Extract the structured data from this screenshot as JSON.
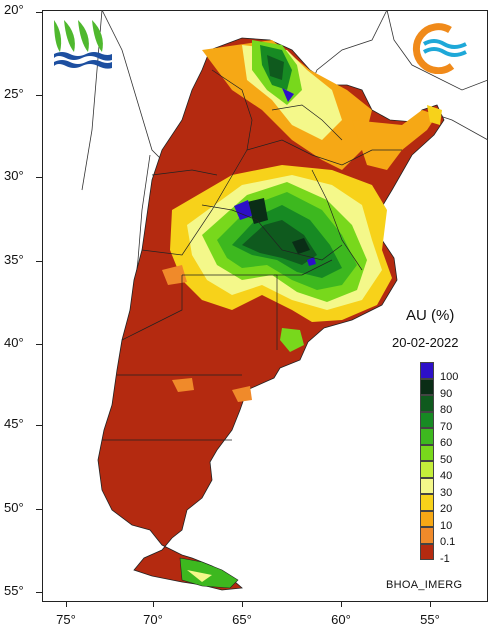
{
  "map": {
    "lat_labels": [
      "20°",
      "25°",
      "30°",
      "35°",
      "40°",
      "45°",
      "50°",
      "55°"
    ],
    "lon_labels": [
      "75°",
      "70°",
      "65°",
      "60°",
      "55°"
    ]
  },
  "legend": {
    "title": "AU (%)",
    "date": "20-02-2022",
    "source": "BHOA_IMERG",
    "classes": [
      {
        "label": "100",
        "color": "#2d10c8"
      },
      {
        "label": "90",
        "color": "#0a2d16"
      },
      {
        "label": "80",
        "color": "#0f5a1e"
      },
      {
        "label": "70",
        "color": "#178a23"
      },
      {
        "label": "60",
        "color": "#3db81f"
      },
      {
        "label": "50",
        "color": "#78d81c"
      },
      {
        "label": "40",
        "color": "#c4ee3a"
      },
      {
        "label": "30",
        "color": "#f4f88a"
      },
      {
        "label": "20",
        "color": "#f7d21a"
      },
      {
        "label": "10",
        "color": "#f6a815"
      },
      {
        "label": "0.1",
        "color": "#f08a2a"
      },
      {
        "label": "-1",
        "color": "#b42a10"
      }
    ]
  },
  "logos": {
    "left": "hydrology-institute-logo",
    "right": "water-wave-logo"
  }
}
